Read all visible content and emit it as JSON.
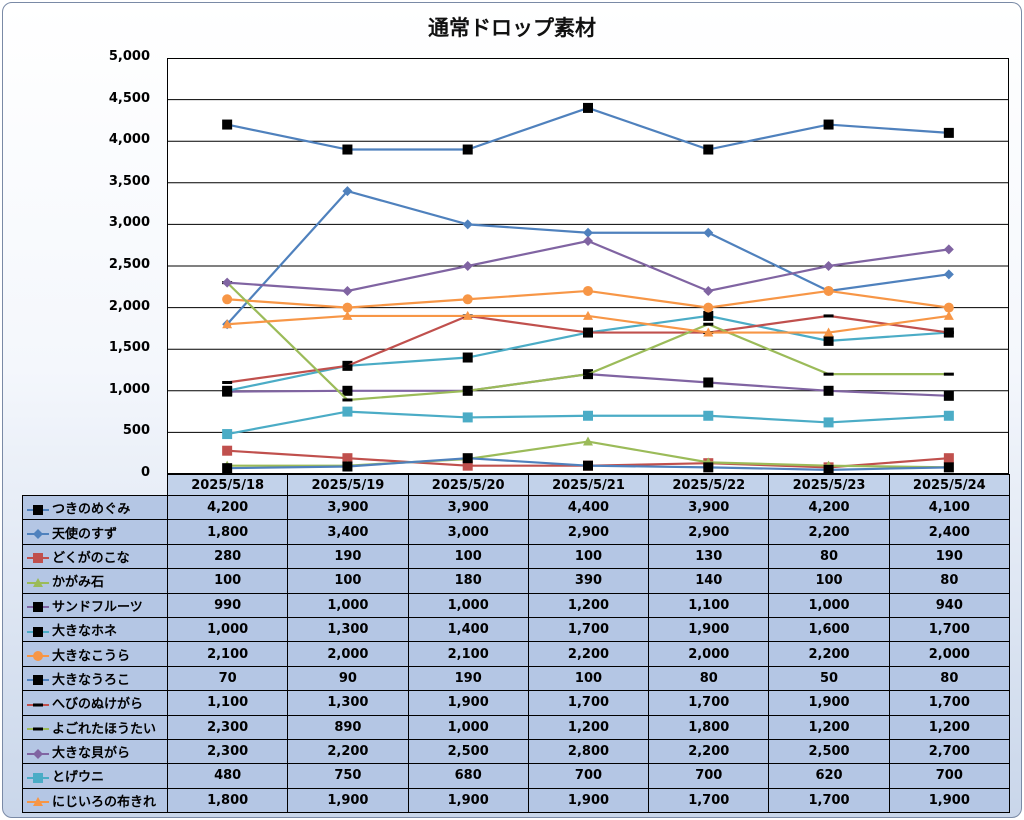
{
  "chart_data": {
    "type": "line",
    "title": "通常ドロップ素材",
    "categories": [
      "2025/5/18",
      "2025/5/19",
      "2025/5/20",
      "2025/5/21",
      "2025/5/22",
      "2025/5/23",
      "2025/5/24"
    ],
    "ylim": [
      0,
      5000
    ],
    "yticks": [
      "0",
      "500",
      "1,000",
      "1,500",
      "2,000",
      "2,500",
      "3,000",
      "3,500",
      "4,000",
      "4,500",
      "5,000"
    ],
    "grid": true,
    "legend": "data-table",
    "series": [
      {
        "name": "つきのめぐみ",
        "color": "#4f81bd",
        "marker": "square",
        "marker_color": "#000000",
        "values": [
          4200,
          3900,
          3900,
          4400,
          3900,
          4200,
          4100
        ],
        "labels": [
          "4,200",
          "3,900",
          "3,900",
          "4,400",
          "3,900",
          "4,200",
          "4,100"
        ]
      },
      {
        "name": "天使のすず",
        "color": "#4f81bd",
        "marker": "diamond",
        "marker_color": "#4f81bd",
        "values": [
          1800,
          3400,
          3000,
          2900,
          2900,
          2200,
          2400
        ],
        "labels": [
          "1,800",
          "3,400",
          "3,000",
          "2,900",
          "2,900",
          "2,200",
          "2,400"
        ]
      },
      {
        "name": "どくがのこな",
        "color": "#c0504d",
        "marker": "square",
        "marker_color": "#c0504d",
        "values": [
          280,
          190,
          100,
          100,
          130,
          80,
          190
        ],
        "labels": [
          "280",
          "190",
          "100",
          "100",
          "130",
          "80",
          "190"
        ]
      },
      {
        "name": "かがみ石",
        "color": "#9bbb59",
        "marker": "triangle",
        "marker_color": "#9bbb59",
        "values": [
          100,
          100,
          180,
          390,
          140,
          100,
          80
        ],
        "labels": [
          "100",
          "100",
          "180",
          "390",
          "140",
          "100",
          "80"
        ]
      },
      {
        "name": "サンドフルーツ",
        "color": "#8064a2",
        "marker": "square",
        "marker_color": "#000000",
        "values": [
          990,
          1000,
          1000,
          1200,
          1100,
          1000,
          940
        ],
        "labels": [
          "990",
          "1,000",
          "1,000",
          "1,200",
          "1,100",
          "1,000",
          "940"
        ]
      },
      {
        "name": "大きなホネ",
        "color": "#4bacc6",
        "marker": "square",
        "marker_color": "#000000",
        "values": [
          1000,
          1300,
          1400,
          1700,
          1900,
          1600,
          1700
        ],
        "labels": [
          "1,000",
          "1,300",
          "1,400",
          "1,700",
          "1,900",
          "1,600",
          "1,700"
        ]
      },
      {
        "name": "大きなこうら",
        "color": "#f79646",
        "marker": "circle",
        "marker_color": "#f79646",
        "values": [
          2100,
          2000,
          2100,
          2200,
          2000,
          2200,
          2000
        ],
        "labels": [
          "2,100",
          "2,000",
          "2,100",
          "2,200",
          "2,000",
          "2,200",
          "2,000"
        ]
      },
      {
        "name": "大きなうろこ",
        "color": "#4f81bd",
        "marker": "square",
        "marker_color": "#000000",
        "values": [
          70,
          90,
          190,
          100,
          80,
          50,
          80
        ],
        "labels": [
          "70",
          "90",
          "190",
          "100",
          "80",
          "50",
          "80"
        ]
      },
      {
        "name": "へびのぬけがら",
        "color": "#c0504d",
        "marker": "dash",
        "marker_color": "#000000",
        "values": [
          1100,
          1300,
          1900,
          1700,
          1700,
          1900,
          1700
        ],
        "labels": [
          "1,100",
          "1,300",
          "1,900",
          "1,700",
          "1,700",
          "1,900",
          "1,700"
        ]
      },
      {
        "name": "よごれたほうたい",
        "color": "#9bbb59",
        "marker": "dash",
        "marker_color": "#000000",
        "values": [
          2300,
          890,
          1000,
          1200,
          1800,
          1200,
          1200
        ],
        "labels": [
          "2,300",
          "890",
          "1,000",
          "1,200",
          "1,800",
          "1,200",
          "1,200"
        ]
      },
      {
        "name": "大きな貝がら",
        "color": "#8064a2",
        "marker": "diamond",
        "marker_color": "#8064a2",
        "values": [
          2300,
          2200,
          2500,
          2800,
          2200,
          2500,
          2700
        ],
        "labels": [
          "2,300",
          "2,200",
          "2,500",
          "2,800",
          "2,200",
          "2,500",
          "2,700"
        ]
      },
      {
        "name": "とげウニ",
        "color": "#4bacc6",
        "marker": "square",
        "marker_color": "#4bacc6",
        "values": [
          480,
          750,
          680,
          700,
          700,
          620,
          700
        ],
        "labels": [
          "480",
          "750",
          "680",
          "700",
          "700",
          "620",
          "700"
        ]
      },
      {
        "name": "にじいろの布きれ",
        "color": "#f79646",
        "marker": "triangle",
        "marker_color": "#f79646",
        "values": [
          1800,
          1900,
          1900,
          1900,
          1700,
          1700,
          1900
        ],
        "labels": [
          "1,800",
          "1,900",
          "1,900",
          "1,900",
          "1,700",
          "1,700",
          "1,900"
        ]
      }
    ]
  }
}
